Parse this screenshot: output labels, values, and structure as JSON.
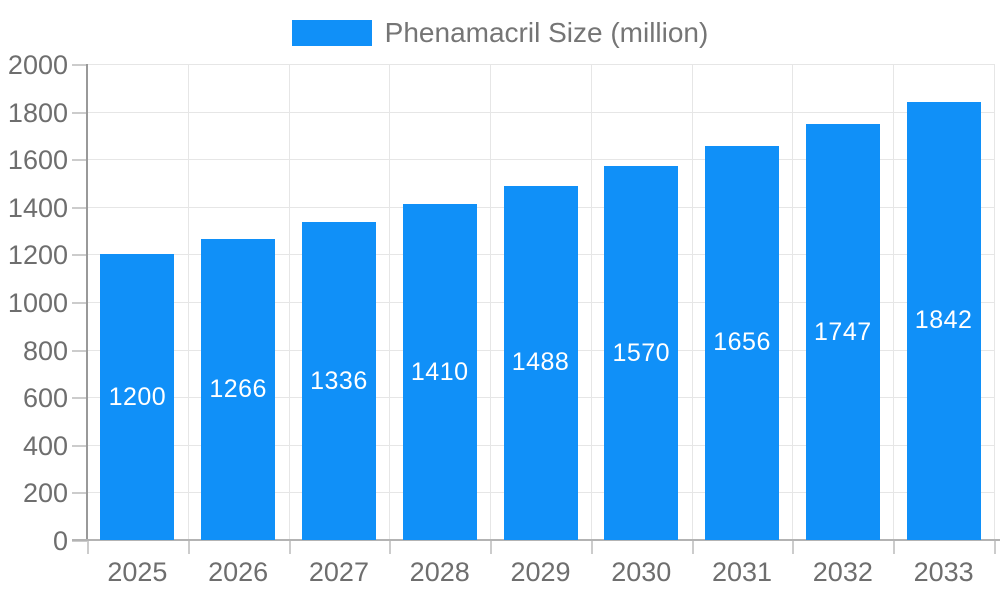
{
  "legend": {
    "label": "Phenamacril Size (million)"
  },
  "chart_data": {
    "type": "bar",
    "categories": [
      "2025",
      "2026",
      "2027",
      "2028",
      "2029",
      "2030",
      "2031",
      "2032",
      "2033"
    ],
    "series": [
      {
        "name": "Phenamacril Size (million)",
        "values": [
          1200,
          1266,
          1336,
          1410,
          1488,
          1570,
          1656,
          1747,
          1842
        ]
      }
    ],
    "value_labels": "inside-center",
    "ylim": [
      0,
      2000
    ],
    "ytick_step": 200,
    "yticks": [
      0,
      200,
      400,
      600,
      800,
      1000,
      1200,
      1400,
      1600,
      1800,
      2000
    ],
    "grid": true,
    "legend_position": "top-center",
    "colors": {
      "bar": "#1090f8",
      "bar_label": "#ffffff",
      "tick_label": "#6e6e6e",
      "legend_label": "#757575",
      "grid": "#e6e6e6",
      "axis_line": "#999999",
      "baseline": "#b3b3b3",
      "tick_mark": "#cccccc"
    }
  }
}
